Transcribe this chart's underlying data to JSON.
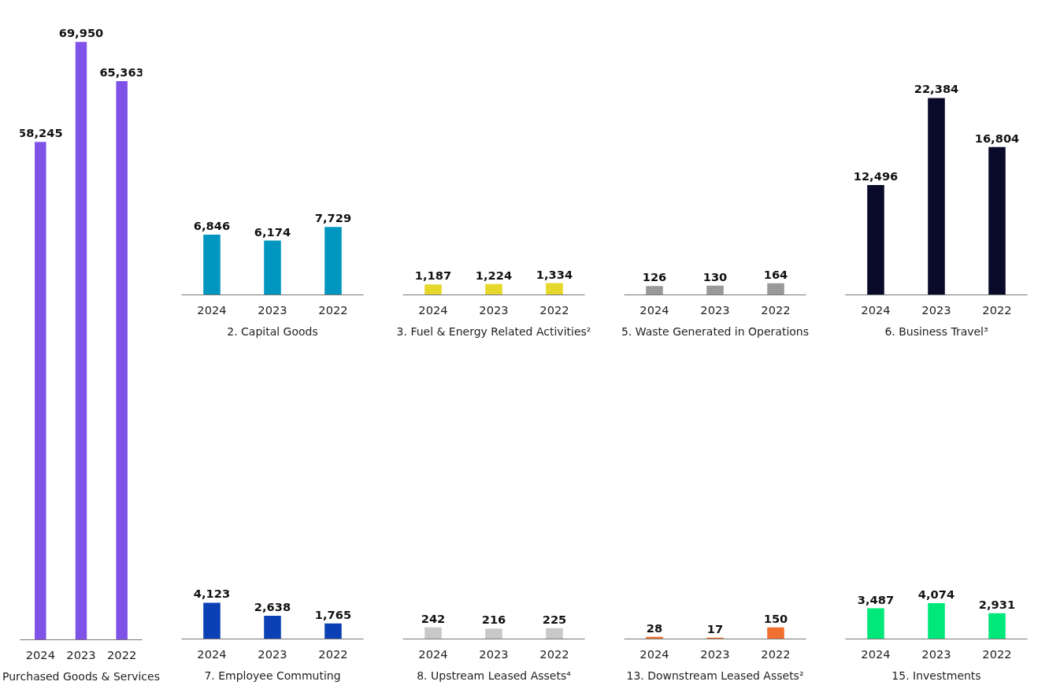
{
  "chart_data": [
    {
      "type": "bar",
      "title": "Purchased Goods & Services",
      "categories": [
        "2024",
        "2023",
        "2022"
      ],
      "values": [
        58245,
        69950,
        65363
      ],
      "value_labels": [
        "58,245",
        "69,950",
        "65,363"
      ],
      "color": "#7f52e8",
      "data_labels": true
    },
    {
      "type": "bar",
      "title": "2. Capital Goods",
      "categories": [
        "2024",
        "2023",
        "2022"
      ],
      "values": [
        6846,
        6174,
        7729
      ],
      "value_labels": [
        "6,846",
        "6,174",
        "7,729"
      ],
      "color": "#0096c0",
      "data_labels": true
    },
    {
      "type": "bar",
      "title": "3. Fuel & Energy Related Activities²",
      "categories": [
        "2024",
        "2023",
        "2022"
      ],
      "values": [
        1187,
        1224,
        1334
      ],
      "value_labels": [
        "1,187",
        "1,224",
        "1,334"
      ],
      "color": "#e6d82a",
      "data_labels": true
    },
    {
      "type": "bar",
      "title": "5. Waste Generated in Operations",
      "categories": [
        "2024",
        "2023",
        "2022"
      ],
      "values": [
        126,
        130,
        164
      ],
      "color": "#999999",
      "data_labels": true
    },
    {
      "type": "bar",
      "title": "6. Business Travel³",
      "categories": [
        "2024",
        "2023",
        "2022"
      ],
      "values": [
        12496,
        22384,
        16804
      ],
      "value_labels": [
        "12,496",
        "22,384",
        "16,804"
      ],
      "color": "#0a0a2a",
      "data_labels": true
    },
    {
      "type": "bar",
      "title": "7. Employee Commuting",
      "categories": [
        "2024",
        "2023",
        "2022"
      ],
      "values": [
        4123,
        2638,
        1765
      ],
      "value_labels": [
        "4,123",
        "2,638",
        "1,765"
      ],
      "color": "#0b41b4",
      "data_labels": true
    },
    {
      "type": "bar",
      "title": "8. Upstream Leased Assets⁴",
      "categories": [
        "2024",
        "2023",
        "2022"
      ],
      "values": [
        242,
        216,
        225
      ],
      "color": "#c8c8c8",
      "data_labels": true
    },
    {
      "type": "bar",
      "title": "13. Downstream Leased Assets²",
      "categories": [
        "2024",
        "2023",
        "2022"
      ],
      "values": [
        28,
        17,
        150
      ],
      "color": "#f07030",
      "data_labels": true
    },
    {
      "type": "bar",
      "title": "15. Investments",
      "categories": [
        "2024",
        "2023",
        "2022"
      ],
      "values": [
        3487,
        4074,
        2931
      ],
      "value_labels": [
        "3,487",
        "4,074",
        "2,931"
      ],
      "color": "#00e87a",
      "data_labels": true
    }
  ]
}
